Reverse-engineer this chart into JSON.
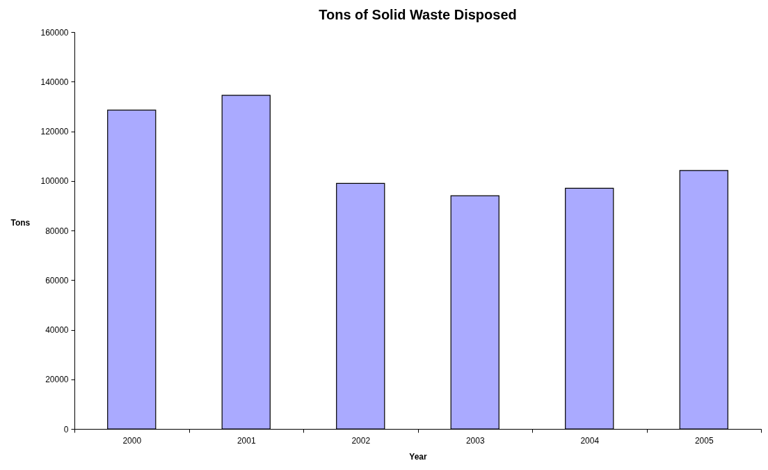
{
  "chart_data": {
    "type": "bar",
    "title": "Tons of Solid Waste Disposed",
    "xlabel": "Year",
    "ylabel": "Tons",
    "categories": [
      "2000",
      "2001",
      "2002",
      "2003",
      "2004",
      "2005"
    ],
    "values": [
      128500,
      134500,
      99000,
      94000,
      97000,
      104200
    ],
    "color": "#aaaaff",
    "ylim": [
      0,
      160000
    ],
    "yticks": [
      0,
      20000,
      40000,
      60000,
      80000,
      100000,
      120000,
      140000,
      160000
    ],
    "grid": false
  }
}
